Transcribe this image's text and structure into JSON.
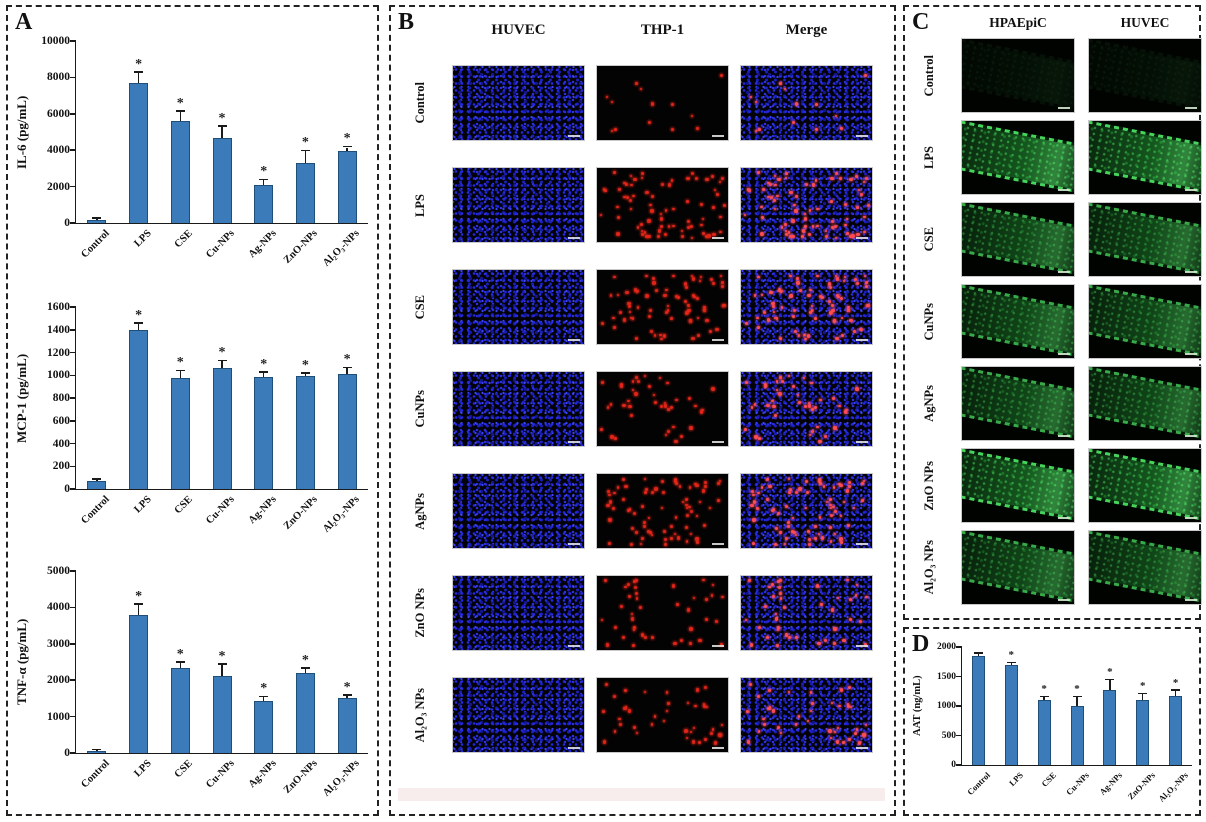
{
  "colors": {
    "bar_fill": "#3C7BB9",
    "bar_border": "#1F4E79",
    "axis": "#1a1a1a",
    "dapi_blue": "#2428e0",
    "thp_red": "#e02418",
    "gfp_green": "#46d45c",
    "strip_pink": "#f8eded"
  },
  "figure": {
    "panels": {
      "A": {
        "label": "A"
      },
      "B": {
        "label": "B",
        "col_headers": [
          "HUVEC",
          "THP-1",
          "Merge"
        ],
        "rows": [
          {
            "label": "Control",
            "thp1_dots": "low"
          },
          {
            "label": "LPS",
            "thp1_dots": "high"
          },
          {
            "label": "CSE",
            "thp1_dots": "high"
          },
          {
            "label": "CuNPs",
            "thp1_dots": "medium"
          },
          {
            "label": "AgNPs",
            "thp1_dots": "high"
          },
          {
            "label": "ZnO NPs",
            "thp1_dots": "medium"
          },
          {
            "label": "Al₂O₃ NPs",
            "thp1_dots": "medium"
          }
        ]
      },
      "C": {
        "label": "C",
        "col_headers": [
          "HPAEpiC",
          "HUVEC"
        ],
        "rows": [
          {
            "label": "Control",
            "intensity": "faint"
          },
          {
            "label": "LPS",
            "intensity": "bright"
          },
          {
            "label": "CSE",
            "intensity": "medium"
          },
          {
            "label": "CuNPs",
            "intensity": "medium"
          },
          {
            "label": "AgNPs",
            "intensity": "medium"
          },
          {
            "label": "ZnO NPs",
            "intensity": "bright"
          },
          {
            "label": "Al₂O₃ NPs",
            "intensity": "medium"
          }
        ]
      },
      "D": {
        "label": "D"
      }
    }
  },
  "chart_data": [
    {
      "type": "bar",
      "title": "",
      "ylabel": "IL-6 (pg/mL)",
      "xlabel": "",
      "categories": [
        "Control",
        "LPS",
        "CSE",
        "Cu-NPs",
        "Ag-NPs",
        "ZnO-NPs",
        "Al₂O₃-NPs"
      ],
      "values": [
        180,
        7700,
        5620,
        4680,
        2080,
        3280,
        3950
      ],
      "errors": [
        60,
        560,
        480,
        600,
        280,
        660,
        200
      ],
      "significance": [
        "",
        "*",
        "*",
        "*",
        "*",
        "*",
        "*"
      ],
      "ylim": [
        0,
        10000
      ],
      "yticks": [
        0,
        2000,
        4000,
        6000,
        8000,
        10000
      ],
      "grid": false,
      "legend": "none"
    },
    {
      "type": "bar",
      "title": "",
      "ylabel": "MCP-1 (pg/mL)",
      "xlabel": "",
      "categories": [
        "Control",
        "LPS",
        "CSE",
        "Cu-NPs",
        "Ag-NPs",
        "ZnO-NPs",
        "Al₂O₃-NPs"
      ],
      "values": [
        70,
        1400,
        980,
        1060,
        985,
        990,
        1010
      ],
      "errors": [
        12,
        55,
        55,
        65,
        35,
        25,
        50
      ],
      "significance": [
        "",
        "*",
        "*",
        "*",
        "*",
        "*",
        "*"
      ],
      "ylim": [
        0,
        1600
      ],
      "yticks": [
        0,
        200,
        400,
        600,
        800,
        1000,
        1200,
        1400,
        1600
      ],
      "grid": false,
      "legend": "none"
    },
    {
      "type": "bar",
      "title": "",
      "ylabel": "TNF-α (pg/mL)",
      "xlabel": "",
      "categories": [
        "Control",
        "LPS",
        "CSE",
        "Cu-NPs",
        "Ag-NPs",
        "ZnO-NPs",
        "Al₂O₃-NPs"
      ],
      "values": [
        60,
        3800,
        2330,
        2120,
        1440,
        2190,
        1500
      ],
      "errors": [
        15,
        280,
        150,
        300,
        90,
        120,
        80
      ],
      "significance": [
        "",
        "*",
        "*",
        "*",
        "*",
        "*",
        "*"
      ],
      "ylim": [
        0,
        5000
      ],
      "yticks": [
        0,
        1000,
        2000,
        3000,
        4000,
        5000
      ],
      "grid": false,
      "legend": "none"
    },
    {
      "type": "bar",
      "title": "",
      "ylabel": "AAT (ng/mL)",
      "xlabel": "",
      "categories": [
        "Control",
        "LPS",
        "CSE",
        "Cu-NPs",
        "Ag-NPs",
        "ZnO-NPs",
        "Al₂O₃-NPs"
      ],
      "values": [
        1850,
        1700,
        1095,
        1005,
        1270,
        1105,
        1165
      ],
      "errors": [
        40,
        25,
        50,
        140,
        170,
        95,
        90
      ],
      "significance": [
        "",
        "*",
        "*",
        "*",
        "*",
        "*",
        "*"
      ],
      "ylim": [
        0,
        2000
      ],
      "yticks": [
        0,
        500,
        1000,
        1500,
        2000
      ],
      "grid": false,
      "legend": "none"
    }
  ]
}
